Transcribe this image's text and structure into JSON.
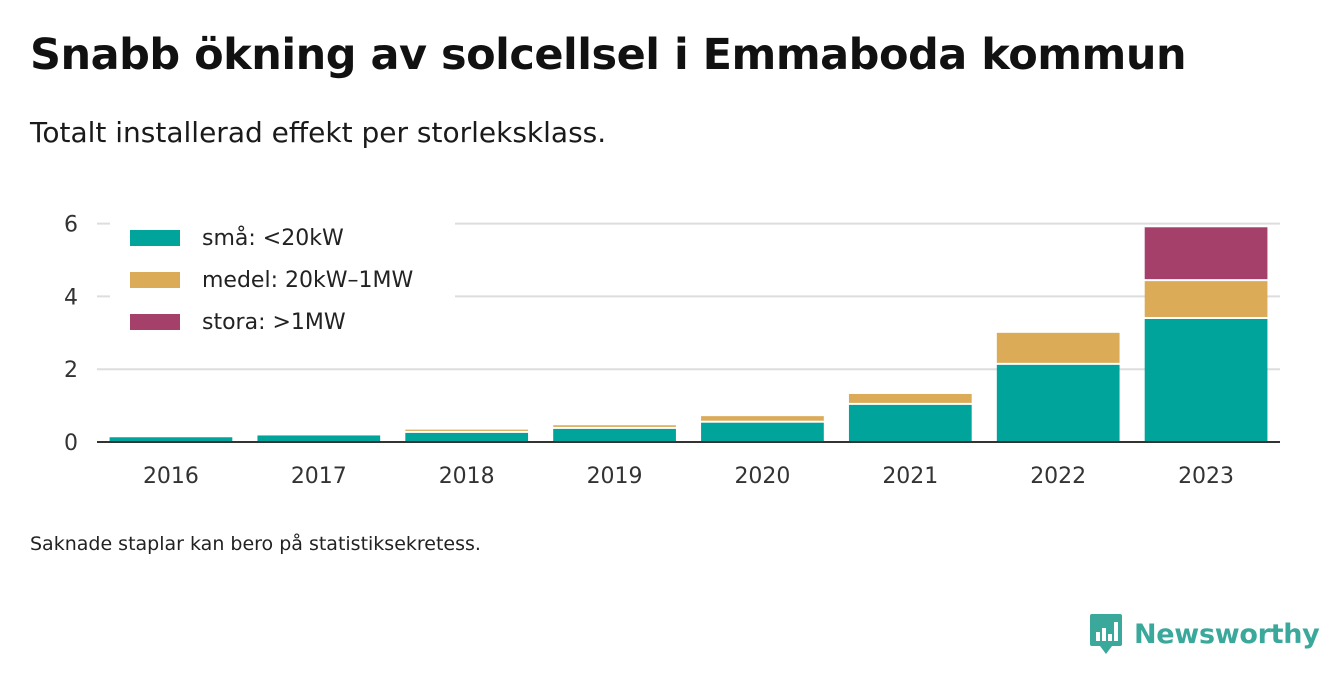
{
  "title": "Snabb ökning av solcellsel i Emmaboda kommun",
  "subtitle": "Totalt installerad effekt per storleksklass.",
  "footnote": "Saknade staplar kan bero på statistiksekretess.",
  "brand": {
    "name": "Newsworthy",
    "icon": "newsworthy-logo-icon",
    "color": "#3aa89a"
  },
  "chart_data": {
    "type": "bar",
    "stacked": true,
    "categories": [
      "2016",
      "2017",
      "2018",
      "2019",
      "2020",
      "2021",
      "2022",
      "2023"
    ],
    "series": [
      {
        "name": "små: <20kW",
        "color": "#00a49a",
        "values": [
          0.13,
          0.18,
          0.25,
          0.36,
          0.53,
          1.02,
          2.12,
          3.38
        ]
      },
      {
        "name": "medel: 20kW–1MW",
        "color": "#dbab57",
        "values": [
          0.0,
          0.0,
          0.09,
          0.1,
          0.18,
          0.3,
          0.88,
          1.04
        ]
      },
      {
        "name": "stora: >1MW",
        "color": "#a4406a",
        "values": [
          0.0,
          0.0,
          0.0,
          0.0,
          0.0,
          0.0,
          0.0,
          1.48
        ]
      }
    ],
    "yticks": [
      0,
      2,
      4,
      6
    ],
    "ylim": [
      0,
      6.1
    ],
    "xlabel": "",
    "ylabel": "",
    "grid": true,
    "legend": "top-left"
  }
}
